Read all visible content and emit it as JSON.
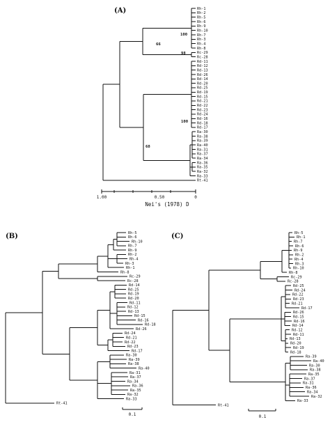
{
  "figure": {
    "panel_a": {
      "label": "(A)",
      "axis_ticks": [
        "1.00",
        "0.50",
        "0"
      ],
      "axis_title": "Nei's (1978) D",
      "bootstrap": [
        "100",
        "66",
        "98",
        "100",
        "68"
      ],
      "taxa": [
        "Rh-1",
        "Rh-2",
        "Rh-5",
        "Rh-6",
        "Rh-9",
        "Rh-10",
        "Rh-7",
        "Rh-3",
        "Rh-4",
        "Rh-8",
        "Rc-29",
        "Rc-28",
        "Rd-11",
        "Rd-12",
        "Rd-13",
        "Rd-26",
        "Rd-14",
        "Rd-20",
        "Rd-25",
        "Rd-19",
        "Rd-15",
        "Rd-21",
        "Rd-22",
        "Rd-23",
        "Rd-24",
        "Rd-16",
        "Rd-18",
        "Rd-17",
        "Ra-30",
        "Ra-38",
        "Ra-39",
        "Ra-40",
        "Ra-31",
        "Ra-37",
        "Ra-34",
        "Ra-36",
        "Ra-35",
        "Ra-32",
        "Ra-33",
        "Rt-41"
      ]
    },
    "panel_b": {
      "label": "(B)",
      "scale_label": "0.1",
      "taxa": [
        "Rh-5",
        "Rh-6",
        "Rh-10",
        "Rh-7",
        "Rh-9",
        "Rh-2",
        "Rh-4",
        "Rh-3",
        "Rh-1",
        "Rh-8",
        "Rc-29",
        "Rc-28",
        "Rd-14",
        "Rd-25",
        "Rd-19",
        "Rd-20",
        "Rd-11",
        "Rd-12",
        "Rd-13",
        "Rd-15",
        "Rd-16",
        "Rd-18",
        "Rd-26",
        "Rd-24",
        "Rd-21",
        "Rd-22",
        "Rd-23",
        "Rd-17",
        "Ra-30",
        "Ra-39",
        "Ra-38",
        "Ra-40",
        "Ra-31",
        "Ra-37",
        "Ra-34",
        "Ra-36",
        "Ra-35",
        "Ra-32",
        "Ra-33",
        "Rt-41"
      ]
    },
    "panel_c": {
      "label": "(C)",
      "scale_label": "0.1",
      "taxa": [
        "Rh-5",
        "Rh-1",
        "Rh-7",
        "Rh-6",
        "Rh-9",
        "Rh-2",
        "Rh-4",
        "Rh-3",
        "Rh-10",
        "Rh-8",
        "Rc-29",
        "Rc-28",
        "Rd-25",
        "Rd-24",
        "Rd-22",
        "Rd-23",
        "Rd-21",
        "Rd-17",
        "Rd-26",
        "Rd-15",
        "Rd-16",
        "Rd-14",
        "Rd-12",
        "Rd-11",
        "Rd-13",
        "Rd-20",
        "Rd-19",
        "Rd-18",
        "Ra-39",
        "Ra-40",
        "Ra-30",
        "Ra-38",
        "Ra-35",
        "Ra-37",
        "Ra-31",
        "Ra-36",
        "Ra-34",
        "Ra-32",
        "Ra-33",
        "Rt-41"
      ]
    }
  }
}
